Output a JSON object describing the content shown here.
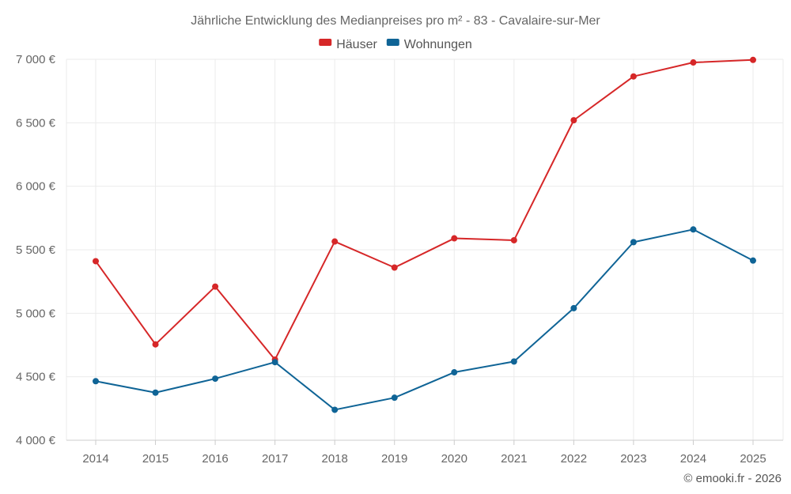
{
  "chart_data": {
    "type": "line",
    "title": "Jährliche Entwicklung des Medianpreises pro m² - 83 - Cavalaire-sur-Mer",
    "categories": [
      "2014",
      "2015",
      "2016",
      "2017",
      "2018",
      "2019",
      "2020",
      "2021",
      "2022",
      "2023",
      "2024",
      "2025"
    ],
    "series": [
      {
        "name": "Häuser",
        "color": "#d62728",
        "values": [
          5410,
          4755,
          5210,
          4635,
          5565,
          5360,
          5590,
          5575,
          6520,
          6865,
          6975,
          6995
        ]
      },
      {
        "name": "Wohnungen",
        "color": "#0f6496",
        "values": [
          4465,
          4375,
          4485,
          4615,
          4240,
          4335,
          4535,
          4620,
          5040,
          5560,
          5660,
          5415
        ]
      }
    ],
    "yticks": [
      4000,
      4500,
      5000,
      5500,
      6000,
      6500,
      7000
    ],
    "ytick_labels": [
      "4 000 €",
      "4 500 €",
      "5 000 €",
      "5 500 €",
      "6 000 €",
      "6 500 €",
      "7 000 €"
    ],
    "ylim": [
      4000,
      7000
    ],
    "xlabel": "",
    "ylabel": "",
    "grid": true,
    "legend_position": "top-center"
  },
  "credit": "© emooki.fr - 2026"
}
